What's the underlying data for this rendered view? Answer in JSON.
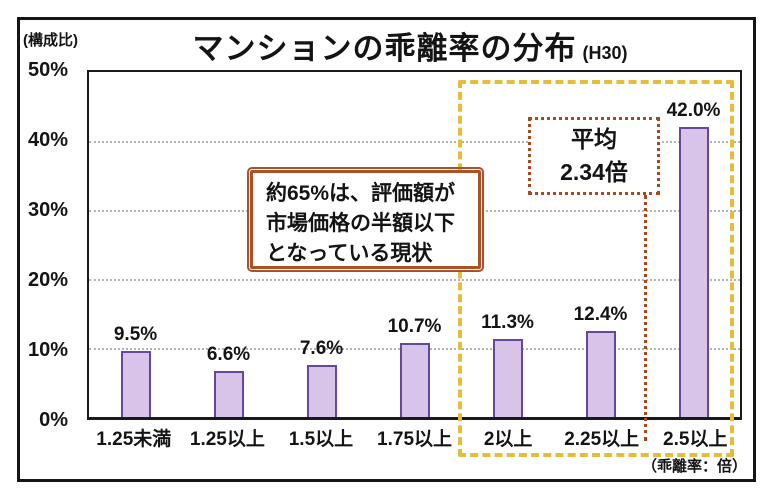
{
  "chart_data": {
    "type": "bar",
    "title": "マンションの乖離率の分布",
    "title_suffix": "(H30)",
    "y_axis_unit": "(構成比)",
    "x_axis_unit": "（乖離率：倍）",
    "categories": [
      "1.25未満",
      "1.25以上",
      "1.5以上",
      "1.75以上",
      "2以上",
      "2.25以上",
      "2.5以上"
    ],
    "values": [
      9.5,
      6.6,
      7.6,
      10.7,
      11.3,
      12.4,
      42.0
    ],
    "value_labels": [
      "9.5%",
      "6.6%",
      "7.6%",
      "10.7%",
      "11.3%",
      "12.4%",
      "42.0%"
    ],
    "ylim": [
      0,
      50
    ],
    "yticks": [
      0,
      10,
      20,
      30,
      40,
      50
    ],
    "ytick_labels": [
      "0%",
      "10%",
      "20%",
      "30%",
      "40%",
      "50%"
    ],
    "grid": "horizontal-dotted",
    "legend": "none",
    "colors": {
      "bar_fill": "#d8c4e9",
      "bar_border": "#64489c",
      "highlight_dash": "#e6bd38",
      "average_dotted": "#a8481f",
      "note_border": "#ab5128"
    },
    "annotations": {
      "note": {
        "text": "約65%は、評価額が\n市場価格の半額以下\nとなっている現状"
      },
      "average": {
        "text": "平均\n2.34倍"
      },
      "highlight_region": {
        "from_category": "2以上",
        "to_category": "2.5以上"
      }
    }
  }
}
